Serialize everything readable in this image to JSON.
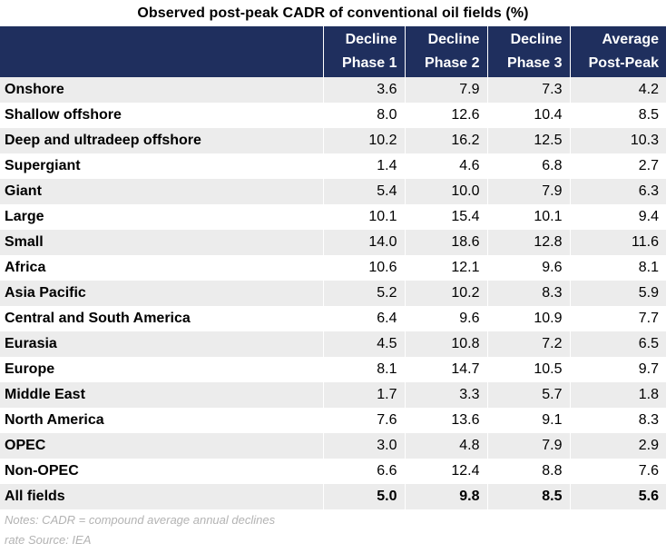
{
  "title": "Observed post-peak CADR  of conventional oil fields (%)",
  "columns": [
    {
      "line1": "",
      "line2": ""
    },
    {
      "line1": "Decline",
      "line2": "Phase 1"
    },
    {
      "line1": "Decline",
      "line2": "Phase 2"
    },
    {
      "line1": "Decline",
      "line2": "Phase 3"
    },
    {
      "line1": "Average",
      "line2": "Post-Peak"
    }
  ],
  "rows": [
    {
      "label": "Onshore",
      "values": [
        "3.6",
        "7.9",
        "7.3",
        "4.2"
      ]
    },
    {
      "label": "Shallow offshore",
      "values": [
        "8.0",
        "12.6",
        "10.4",
        "8.5"
      ]
    },
    {
      "label": "Deep and ultradeep offshore",
      "values": [
        "10.2",
        "16.2",
        "12.5",
        "10.3"
      ]
    },
    {
      "label": "Supergiant",
      "values": [
        "1.4",
        "4.6",
        "6.8",
        "2.7"
      ]
    },
    {
      "label": "Giant",
      "values": [
        "5.4",
        "10.0",
        "7.9",
        "6.3"
      ]
    },
    {
      "label": "Large",
      "values": [
        "10.1",
        "15.4",
        "10.1",
        "9.4"
      ]
    },
    {
      "label": "Small",
      "values": [
        "14.0",
        "18.6",
        "12.8",
        "11.6"
      ]
    },
    {
      "label": "Africa",
      "values": [
        "10.6",
        "12.1",
        "9.6",
        "8.1"
      ]
    },
    {
      "label": "Asia Pacific",
      "values": [
        "5.2",
        "10.2",
        "8.3",
        "5.9"
      ]
    },
    {
      "label": "Central and South America",
      "values": [
        "6.4",
        "9.6",
        "10.9",
        "7.7"
      ]
    },
    {
      "label": "Eurasia",
      "values": [
        "4.5",
        "10.8",
        "7.2",
        "6.5"
      ]
    },
    {
      "label": "Europe",
      "values": [
        "8.1",
        "14.7",
        "10.5",
        "9.7"
      ]
    },
    {
      "label": "Middle East",
      "values": [
        "1.7",
        "3.3",
        "5.7",
        "1.8"
      ]
    },
    {
      "label": "North America",
      "values": [
        "7.6",
        "13.6",
        "9.1",
        "8.3"
      ]
    },
    {
      "label": "OPEC",
      "values": [
        "3.0",
        "4.8",
        "7.9",
        "2.9"
      ]
    },
    {
      "label": "Non-OPEC",
      "values": [
        "6.6",
        "12.4",
        "8.8",
        "7.6"
      ]
    },
    {
      "label": "All fields",
      "values": [
        "5.0",
        "9.8",
        "8.5",
        "5.6"
      ]
    }
  ],
  "notes": {
    "line1": "Notes: CADR = compound average annual declines",
    "line2": "rate Source: IEA"
  }
}
